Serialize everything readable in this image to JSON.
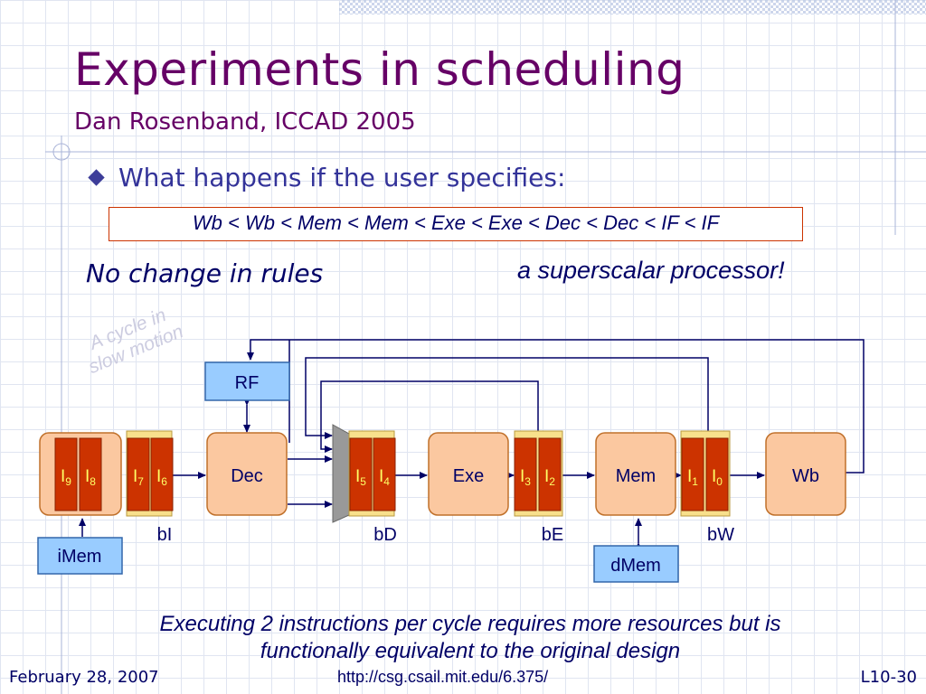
{
  "slide": {
    "title": "Experiments in scheduling",
    "subtitle": "Dan Rosenband, ICCAD 2005",
    "bullet": "What happens if the user specifies:",
    "schedule_order": "Wb < Wb < Mem < Mem < Exe < Exe < Dec < Dec < IF < IF",
    "note_left": "No change in rules",
    "note_right": "a superscalar processor!",
    "watermark": [
      "A cycle in",
      "slow motion"
    ],
    "caption_lines": [
      "Executing 2 instructions per cycle  requires more resources but is",
      "functionally equivalent to the original design"
    ]
  },
  "diagram": {
    "stages": {
      "dec": "Dec",
      "exe": "Exe",
      "mem": "Mem",
      "wb": "Wb"
    },
    "memories": {
      "rf": "RF",
      "imem": "iMem",
      "dmem": "dMem"
    },
    "buffers": {
      "bi": "bI",
      "bd": "bD",
      "be": "bE",
      "bw": "bW"
    },
    "instructions": {
      "i9": {
        "letter": "I",
        "sub": "9"
      },
      "i8": {
        "letter": "I",
        "sub": "8"
      },
      "i7": {
        "letter": "I",
        "sub": "7"
      },
      "i6": {
        "letter": "I",
        "sub": "6"
      },
      "i5": {
        "letter": "I",
        "sub": "5"
      },
      "i4": {
        "letter": "I",
        "sub": "4"
      },
      "i3": {
        "letter": "I",
        "sub": "3"
      },
      "i2": {
        "letter": "I",
        "sub": "2"
      },
      "i1": {
        "letter": "I",
        "sub": "1"
      },
      "i0": {
        "letter": "I",
        "sub": "0"
      }
    },
    "colors": {
      "stage_fill": "#fbc8a0",
      "stage_stroke": "#c0702a",
      "memory_fill": "#99ccff",
      "memory_stroke": "#3366aa",
      "instr_fill": "#cc3300",
      "instr_text": "#ffff66",
      "buffer_fill": "#f8e08c",
      "line": "#000066",
      "mux_fill": "#999999"
    }
  },
  "footer": {
    "date": "February 28, 2007",
    "url": "http://csg.csail.mit.edu/6.375/",
    "page": "L10-30"
  }
}
